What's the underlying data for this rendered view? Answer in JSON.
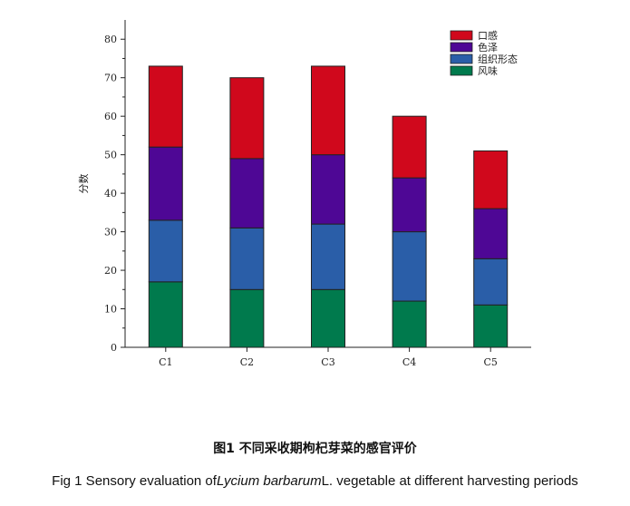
{
  "chart_data": {
    "type": "bar",
    "stacked": true,
    "categories": [
      "C1",
      "C2",
      "C3",
      "C4",
      "C5"
    ],
    "ylabel": "分数",
    "ylim": [
      0,
      85
    ],
    "yticks": [
      0,
      10,
      20,
      30,
      40,
      50,
      60,
      70,
      80
    ],
    "grid": false,
    "legend_position": "top-right",
    "series": [
      {
        "name": "风味",
        "color": "#007a4d",
        "values": [
          17,
          15,
          15,
          12,
          11
        ]
      },
      {
        "name": "组织形态",
        "color": "#2a5ea8",
        "values": [
          16,
          16,
          17,
          18,
          12
        ]
      },
      {
        "name": "色泽",
        "color": "#4e0795",
        "values": [
          19,
          18,
          18,
          14,
          13
        ]
      },
      {
        "name": "口感",
        "color": "#d0081c",
        "values": [
          21,
          21,
          23,
          16,
          15
        ]
      }
    ],
    "legend_order": [
      "口感",
      "色泽",
      "组织形态",
      "风味"
    ]
  },
  "caption": {
    "cn": "图1 不同采收期枸杞芽菜的感官评价",
    "en_prefix": "Fig 1 Sensory evaluation of",
    "en_italic": "Lycium barbarum",
    "en_suffix": "L. vegetable at different harvesting periods"
  }
}
